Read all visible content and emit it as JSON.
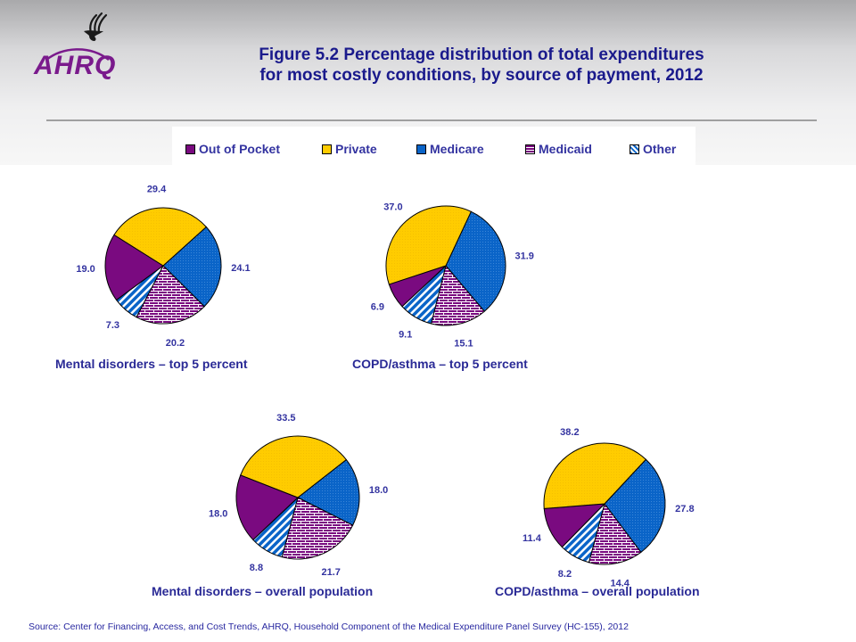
{
  "header": {
    "logo_text": "AHRQ",
    "logo_icon": "hhs-eagle-icon",
    "title_line1": "Figure 5.2 Percentage distribution of total expenditures",
    "title_line2": "for most costly conditions, by source of payment, 2012"
  },
  "colors": {
    "title": "#1a1a8c",
    "out_of_pocket": "#7a0a80",
    "private": "#ffcc00",
    "medicare": "#0a64c8",
    "medicaid": "#7a0a80",
    "other": "#0a64c8",
    "label": "#3333a0"
  },
  "legend": [
    {
      "key": "out_of_pocket",
      "label": "Out of Pocket"
    },
    {
      "key": "private",
      "label": "Private"
    },
    {
      "key": "medicare",
      "label": "Medicare"
    },
    {
      "key": "medicaid",
      "label": "Medicaid"
    },
    {
      "key": "other",
      "label": "Other"
    }
  ],
  "chart_data": [
    {
      "type": "pie",
      "title": "Mental disorders – top 5 percent",
      "categories": [
        "Medicare",
        "Medicaid",
        "Other",
        "Out of Pocket",
        "Private"
      ],
      "values": [
        24.1,
        20.2,
        7.3,
        19.0,
        29.4
      ],
      "labels": [
        "24.1",
        "20.2",
        "7.3",
        "19.0",
        "29.4"
      ]
    },
    {
      "type": "pie",
      "title": "COPD/asthma – top 5 percent",
      "categories": [
        "Medicare",
        "Medicaid",
        "Other",
        "Out of Pocket",
        "Private"
      ],
      "values": [
        31.9,
        15.1,
        9.1,
        6.9,
        37.0
      ],
      "labels": [
        "31.9",
        "15.1",
        "9.1",
        "6.9",
        "37.0"
      ]
    },
    {
      "type": "pie",
      "title": "Mental disorders – overall population",
      "categories": [
        "Medicare",
        "Medicaid",
        "Other",
        "Out of Pocket",
        "Private"
      ],
      "values": [
        18.0,
        21.7,
        8.8,
        18.0,
        33.5
      ],
      "labels": [
        "18.0",
        "21.7",
        "8.8",
        "18.0",
        "33.5"
      ]
    },
    {
      "type": "pie",
      "title": "COPD/asthma – overall population",
      "categories": [
        "Medicare",
        "Medicaid",
        "Other",
        "Out of Pocket",
        "Private"
      ],
      "values": [
        27.8,
        14.4,
        8.2,
        11.4,
        38.2
      ],
      "labels": [
        "27.8",
        "14.4",
        "8.2",
        "11.4",
        "38.2"
      ]
    }
  ],
  "source": "Source: Center for Financing, Access, and Cost Trends, AHRQ, Household Component of the Medical Expenditure Panel Survey  (HC-155), 2012"
}
